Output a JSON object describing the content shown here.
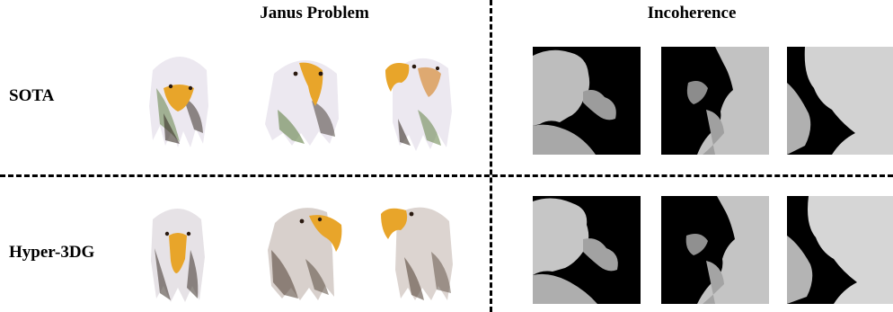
{
  "figure": {
    "column_headers": {
      "janus": "Janus Problem",
      "incoherence": "Incoherence"
    },
    "row_labels": {
      "sota": "SOTA",
      "hyper": "Hyper-3DG"
    }
  },
  "colors": {
    "eagle_white": "#ece8f0",
    "eagle_beak": "#e8a52a",
    "eagle_dark": "#3a3028",
    "eagle_green": "#6f8a55",
    "depth_bg": "#000000",
    "depth_gray": "#b8b8b8"
  },
  "panels": {
    "sota_eagles": [
      "eagle-view-front",
      "eagle-view-three-quarter",
      "eagle-view-side"
    ],
    "hyper_eagles": [
      "eagle-view-front",
      "eagle-view-three-quarter",
      "eagle-view-side"
    ],
    "depth_maps": [
      "depth-map-1",
      "depth-map-2",
      "depth-map-3"
    ]
  }
}
